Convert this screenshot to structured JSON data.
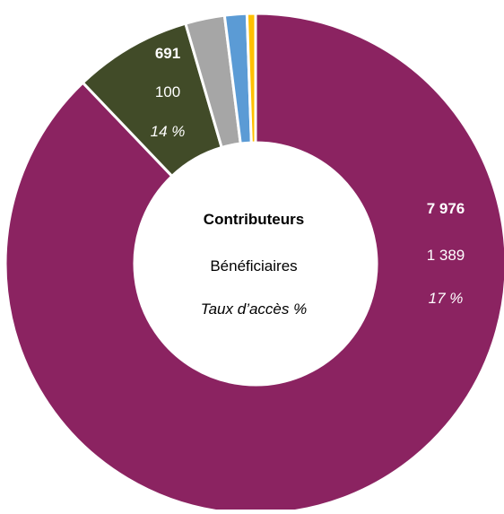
{
  "chart_data": {
    "type": "pie",
    "variant": "donut",
    "center_labels": {
      "line1": "Contributeurs",
      "line2": "Bénéficiaires",
      "line3": "Taux d’accès %"
    },
    "slices": [
      {
        "value": 7976,
        "color": "#8B2361",
        "labels": {
          "contributors": "7 976",
          "beneficiaries": "1 389",
          "rate": "17 %"
        },
        "label_color": "#ffffff",
        "label_italic_color": "#ffffff"
      },
      {
        "value": 691,
        "color": "#414B28",
        "labels": {
          "contributors": "691",
          "beneficiaries": "100",
          "rate": "14 %"
        },
        "label_color": "#ffffff",
        "label_italic_color": "#ffffff"
      },
      {
        "value": 230,
        "color": "#A6A6A6"
      },
      {
        "value": 130,
        "color": "#5B9BD5"
      },
      {
        "value": 50,
        "color": "#FFC000"
      }
    ],
    "legend": "none"
  }
}
